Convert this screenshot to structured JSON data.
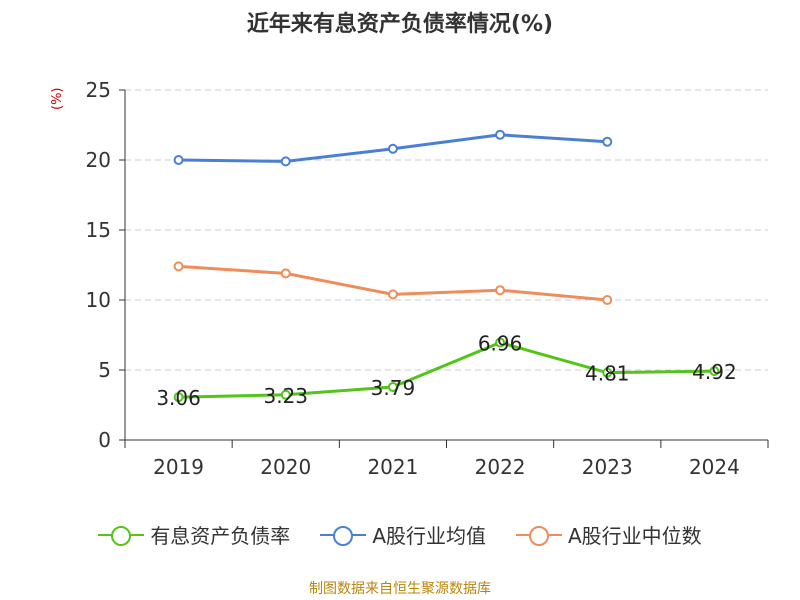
{
  "chart_data": {
    "type": "line",
    "title": "近年来有息资产负债率情况(%)",
    "ylabel": "(%)",
    "categories": [
      "2019",
      "2020",
      "2021",
      "2022",
      "2023",
      "2024"
    ],
    "ylim": [
      0,
      25
    ],
    "yticks": [
      0,
      5,
      10,
      15,
      20,
      25
    ],
    "grid": true,
    "legend_position": "bottom",
    "series": [
      {
        "name": "有息资产负债率",
        "color": "#52c41a",
        "values": [
          3.06,
          3.23,
          3.79,
          6.96,
          4.81,
          4.92
        ],
        "labels": [
          "3.06",
          "3.23",
          "3.79",
          "6.96",
          "4.81",
          "4.92"
        ]
      },
      {
        "name": "A股行业均值",
        "color": "#4a7fd6",
        "values": [
          20.0,
          19.9,
          20.8,
          21.8,
          21.3,
          null
        ]
      },
      {
        "name": "A股行业中位数",
        "color": "#f08c5a",
        "values": [
          12.4,
          11.9,
          10.4,
          10.7,
          10.0,
          null
        ]
      }
    ]
  },
  "source": "制图数据来自恒生聚源数据库"
}
